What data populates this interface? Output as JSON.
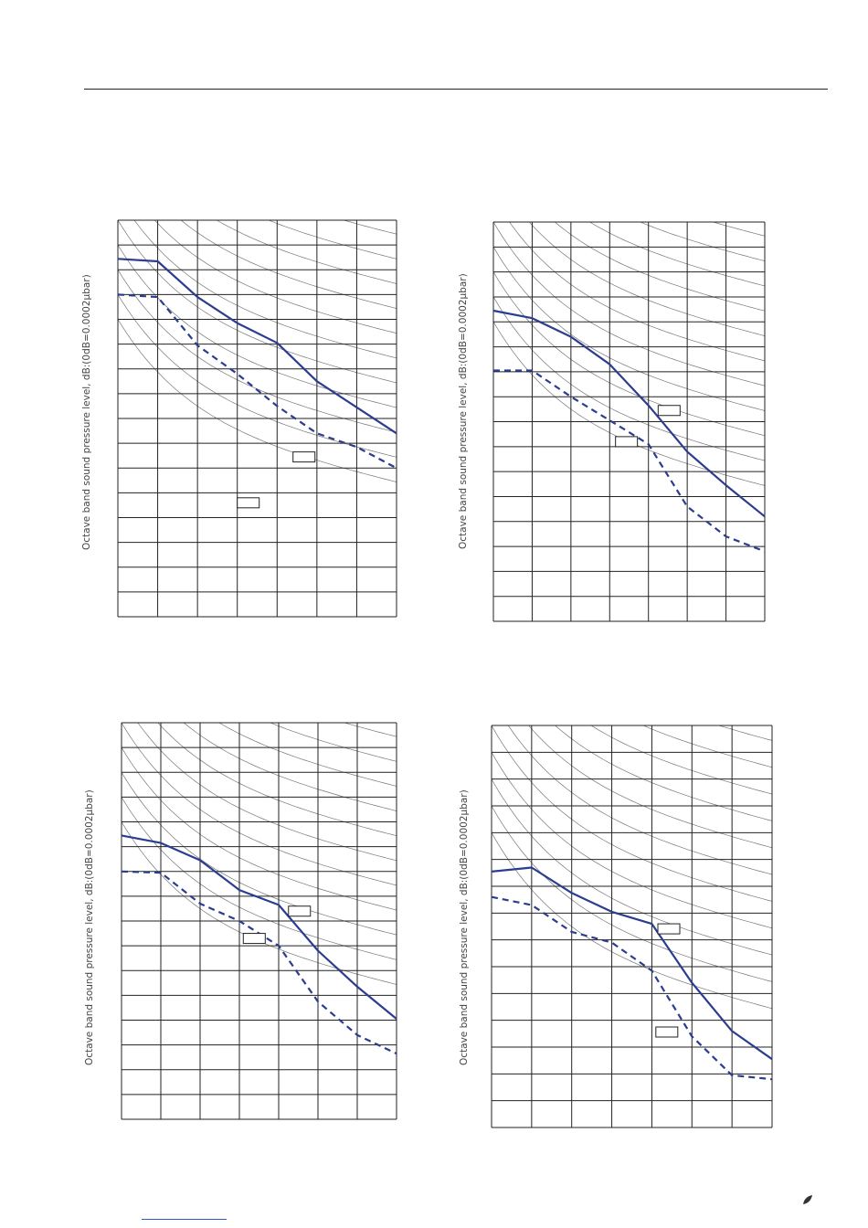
{
  "colors": {
    "line": "#2b3d8f",
    "grid": "#222222",
    "curve": "#777777",
    "rule": "#222222",
    "link": "#3355cc"
  },
  "icons": {
    "footer_mark": "leaf-icon"
  },
  "chart_data": [
    {
      "type": "line",
      "ylabel": "Octave band sound pressure level, dB:(0dB=0.0002µbar)",
      "grid": true,
      "grid_divisions": {
        "x": 7,
        "y": 16
      },
      "series": [
        {
          "style": "solid",
          "values": [
            1.56,
            1.66,
            3.1,
            4.15,
            4.95,
            6.5,
            7.55,
            8.6
          ]
        },
        {
          "style": "dashed",
          "values": [
            3.0,
            3.1,
            5.05,
            6.2,
            7.5,
            8.6,
            9.15,
            10.0
          ]
        }
      ]
    },
    {
      "type": "line",
      "ylabel": "Octave band sound pressure level, dB:(0dB=0.0002µbar)",
      "grid": true,
      "grid_divisions": {
        "x": 7,
        "y": 16
      },
      "series": [
        {
          "style": "solid",
          "values": [
            3.55,
            3.85,
            4.6,
            5.7,
            7.35,
            9.2,
            10.55,
            11.8
          ]
        },
        {
          "style": "dashed",
          "values": [
            5.95,
            5.95,
            7.0,
            7.95,
            8.9,
            11.4,
            12.6,
            13.2
          ]
        }
      ]
    },
    {
      "type": "line",
      "ylabel": "Octave band sound pressure level, dB:(0dB=0.0002µbar)",
      "grid": true,
      "grid_divisions": {
        "x": 7,
        "y": 16
      },
      "series": [
        {
          "style": "solid",
          "values": [
            4.55,
            4.85,
            5.55,
            6.75,
            7.35,
            9.2,
            10.65,
            11.95
          ]
        },
        {
          "style": "dashed",
          "values": [
            6.0,
            6.05,
            7.3,
            8.0,
            9.0,
            11.25,
            12.6,
            13.35
          ]
        }
      ]
    },
    {
      "type": "line",
      "ylabel": "Octave band sound pressure level, dB:(0dB=0.0002µbar)",
      "grid": true,
      "grid_divisions": {
        "x": 7,
        "y": 15
      },
      "series": [
        {
          "style": "solid",
          "values": [
            5.45,
            5.3,
            6.25,
            6.95,
            7.4,
            9.6,
            11.4,
            12.45
          ]
        },
        {
          "style": "dashed",
          "values": [
            6.4,
            6.7,
            7.7,
            8.1,
            9.15,
            11.6,
            13.05,
            13.2
          ]
        }
      ]
    }
  ]
}
